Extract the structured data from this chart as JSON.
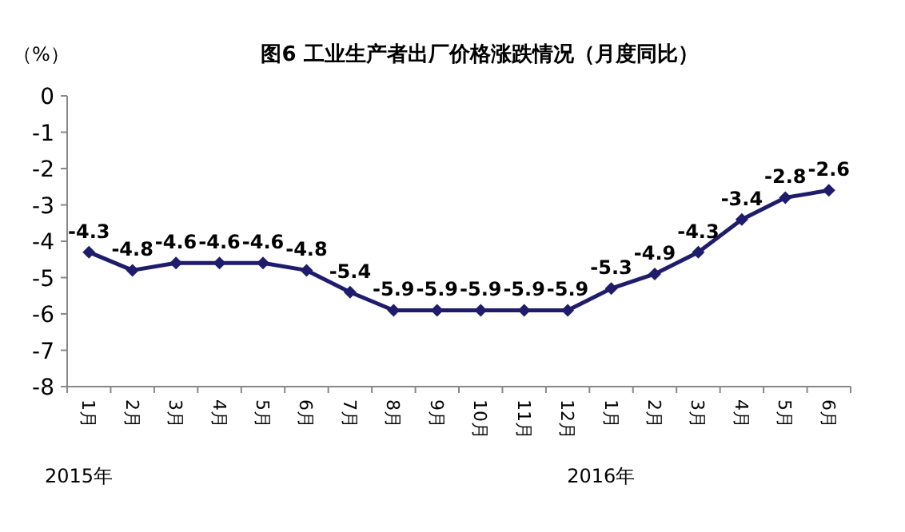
{
  "chart_data": {
    "type": "line",
    "title": "图6 工业生产者出厂价格涨跌情况（月度同比）",
    "ylabel": "（%）",
    "categories": [
      "1月",
      "2月",
      "3月",
      "4月",
      "5月",
      "6月",
      "7月",
      "8月",
      "9月",
      "10月",
      "11月",
      "12月",
      "1月",
      "2月",
      "3月",
      "4月",
      "5月",
      "6月"
    ],
    "values": [
      -4.3,
      -4.8,
      -4.6,
      -4.6,
      -4.6,
      -4.8,
      -5.4,
      -5.9,
      -5.9,
      -5.9,
      -5.9,
      -5.9,
      -5.3,
      -4.9,
      -4.3,
      -3.4,
      -2.8,
      -2.6
    ],
    "color": "#1f1c6b",
    "marker": "diamond",
    "line_style": "solid",
    "data_labels": true,
    "ylim": [
      -8,
      0
    ],
    "yticks": [
      0,
      -1,
      -2,
      -3,
      -4,
      -5,
      -6,
      -7,
      -8
    ],
    "annotations": [
      "2015年",
      "2016年"
    ]
  }
}
